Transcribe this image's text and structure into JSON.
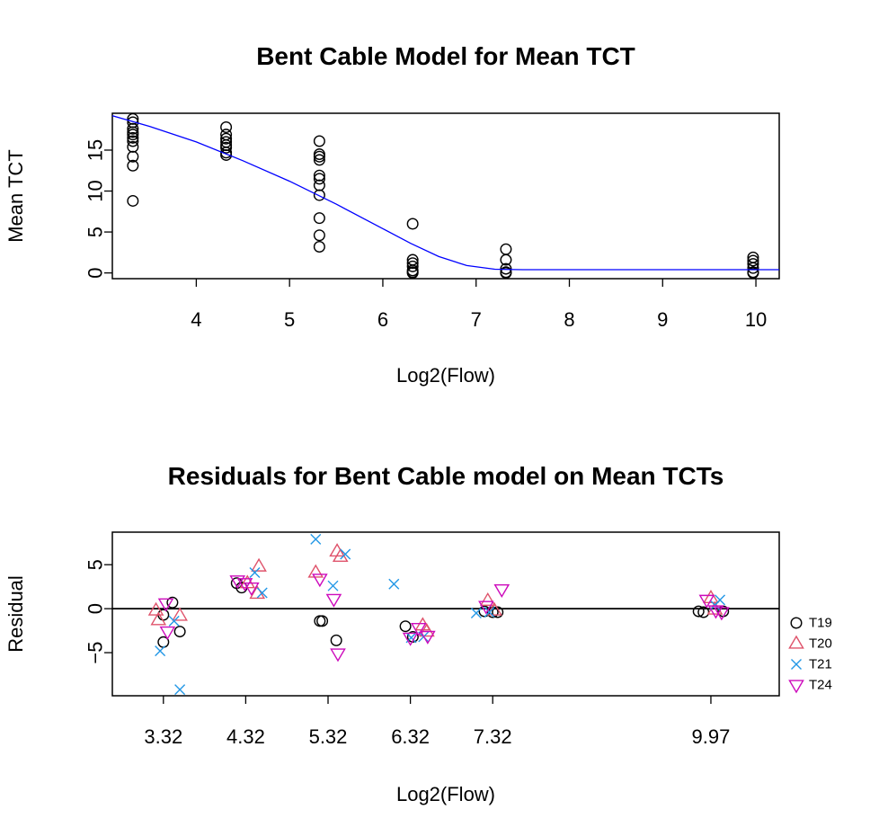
{
  "chart_data": [
    {
      "type": "scatter",
      "title": "Bent Cable Model for Mean TCT",
      "xlabel": "Log2(Flow)",
      "ylabel": "Mean TCT",
      "xlim": [
        3.1,
        10.25
      ],
      "ylim": [
        -0.7,
        19.5
      ],
      "xticks": [
        4,
        5,
        6,
        7,
        8,
        9,
        10
      ],
      "yticks": [
        0,
        5,
        10,
        15
      ],
      "grid": false,
      "series": [
        {
          "marker": "circle",
          "color": "#000000",
          "points": [
            [
              3.32,
              18.8
            ],
            [
              3.32,
              18.4
            ],
            [
              3.32,
              17.6
            ],
            [
              3.32,
              17.2
            ],
            [
              3.32,
              16.9
            ],
            [
              3.32,
              16.5
            ],
            [
              3.32,
              16.1
            ],
            [
              3.32,
              15.4
            ],
            [
              3.32,
              14.2
            ],
            [
              3.32,
              13.1
            ],
            [
              3.32,
              8.8
            ],
            [
              4.32,
              17.8
            ],
            [
              4.32,
              16.9
            ],
            [
              4.32,
              16.4
            ],
            [
              4.32,
              16.0
            ],
            [
              4.32,
              15.6
            ],
            [
              4.32,
              15.3
            ],
            [
              4.32,
              14.7
            ],
            [
              4.32,
              14.4
            ],
            [
              5.32,
              16.1
            ],
            [
              5.32,
              14.5
            ],
            [
              5.32,
              14.2
            ],
            [
              5.32,
              13.8
            ],
            [
              5.32,
              11.9
            ],
            [
              5.32,
              11.5
            ],
            [
              5.32,
              10.7
            ],
            [
              5.32,
              9.5
            ],
            [
              5.32,
              6.7
            ],
            [
              5.32,
              4.6
            ],
            [
              5.32,
              3.2
            ],
            [
              6.32,
              6.0
            ],
            [
              6.32,
              1.6
            ],
            [
              6.32,
              1.2
            ],
            [
              6.32,
              0.8
            ],
            [
              6.32,
              0.3
            ],
            [
              6.32,
              0.1
            ],
            [
              6.32,
              0.0
            ],
            [
              7.32,
              2.9
            ],
            [
              7.32,
              1.6
            ],
            [
              7.32,
              0.5
            ],
            [
              7.32,
              0.1
            ],
            [
              7.32,
              0.0
            ],
            [
              9.97,
              1.9
            ],
            [
              9.97,
              1.5
            ],
            [
              9.97,
              1.1
            ],
            [
              9.97,
              0.6
            ],
            [
              9.97,
              0.1
            ],
            [
              9.97,
              0.0
            ]
          ]
        },
        {
          "marker": "line",
          "color": "#0000ff",
          "points": [
            [
              3.1,
              19.2
            ],
            [
              3.5,
              17.9
            ],
            [
              4.0,
              16.0
            ],
            [
              4.5,
              13.7
            ],
            [
              5.0,
              11.2
            ],
            [
              5.5,
              8.4
            ],
            [
              6.0,
              5.4
            ],
            [
              6.3,
              3.6
            ],
            [
              6.6,
              2.0
            ],
            [
              6.9,
              0.9
            ],
            [
              7.2,
              0.45
            ],
            [
              7.5,
              0.4
            ],
            [
              10.25,
              0.4
            ]
          ]
        }
      ]
    },
    {
      "type": "scatter",
      "title": "Residuals for Bent Cable model on Mean TCTs",
      "xlabel": "Log2(Flow)",
      "ylabel": "Residual",
      "xlim": [
        2.7,
        10.8
      ],
      "ylim": [
        -9.9,
        8.7
      ],
      "xticks": [
        3.32,
        4.32,
        5.32,
        6.32,
        7.32,
        9.97
      ],
      "xtick_labels": [
        "3.32",
        "4.32",
        "5.32",
        "6.32",
        "7.32",
        "9.97"
      ],
      "yticks": [
        -5,
        0,
        5
      ],
      "hline": 0,
      "legend_position": "right",
      "series": [
        {
          "name": "T19",
          "marker": "circle",
          "color": "#000000",
          "points": [
            [
              3.32,
              -0.7
            ],
            [
              3.32,
              -3.8
            ],
            [
              3.43,
              0.7
            ],
            [
              3.52,
              -2.6
            ],
            [
              4.21,
              2.9
            ],
            [
              4.27,
              2.4
            ],
            [
              5.22,
              -1.4
            ],
            [
              5.25,
              -1.4
            ],
            [
              5.42,
              -3.6
            ],
            [
              6.26,
              -2.0
            ],
            [
              6.35,
              -3.2
            ],
            [
              7.22,
              -0.3
            ],
            [
              7.32,
              -0.4
            ],
            [
              7.38,
              -0.4
            ],
            [
              9.82,
              -0.3
            ],
            [
              9.88,
              -0.4
            ],
            [
              10.12,
              -0.3
            ]
          ]
        },
        {
          "name": "T20",
          "marker": "triangle-up",
          "color": "#df536b",
          "points": [
            [
              3.23,
              -0.2
            ],
            [
              3.26,
              -1.3
            ],
            [
              3.52,
              -0.8
            ],
            [
              4.34,
              2.9
            ],
            [
              4.48,
              4.8
            ],
            [
              4.46,
              1.7
            ],
            [
              5.17,
              4.1
            ],
            [
              5.43,
              6.5
            ],
            [
              5.47,
              5.9
            ],
            [
              6.47,
              -1.9
            ],
            [
              6.52,
              -2.6
            ],
            [
              7.26,
              0.9
            ],
            [
              7.34,
              -0.2
            ],
            [
              9.97,
              1.2
            ],
            [
              10.02,
              -0.1
            ]
          ]
        },
        {
          "name": "T21",
          "marker": "x",
          "color": "#2297e6",
          "points": [
            [
              3.28,
              -4.8
            ],
            [
              3.45,
              -1.4
            ],
            [
              3.52,
              -9.2
            ],
            [
              4.43,
              4.1
            ],
            [
              4.52,
              1.8
            ],
            [
              5.17,
              7.9
            ],
            [
              5.38,
              2.6
            ],
            [
              5.53,
              6.2
            ],
            [
              6.12,
              2.8
            ],
            [
              6.33,
              -3.3
            ],
            [
              6.48,
              -3.2
            ],
            [
              7.12,
              -0.5
            ],
            [
              7.28,
              -0.4
            ],
            [
              10.02,
              0.4
            ],
            [
              10.08,
              1.0
            ]
          ]
        },
        {
          "name": "T24",
          "marker": "triangle-down",
          "color": "#cd0bbc",
          "points": [
            [
              3.35,
              0.6
            ],
            [
              3.37,
              -2.6
            ],
            [
              4.22,
              3.2
            ],
            [
              4.31,
              2.9
            ],
            [
              4.39,
              2.4
            ],
            [
              5.22,
              3.4
            ],
            [
              5.39,
              1.1
            ],
            [
              5.44,
              -5.1
            ],
            [
              6.32,
              -3.3
            ],
            [
              6.42,
              -2.2
            ],
            [
              6.53,
              -3.1
            ],
            [
              7.24,
              0.3
            ],
            [
              7.43,
              2.2
            ],
            [
              9.92,
              1.0
            ],
            [
              10.03,
              -0.2
            ],
            [
              10.1,
              -0.4
            ]
          ]
        }
      ]
    }
  ]
}
